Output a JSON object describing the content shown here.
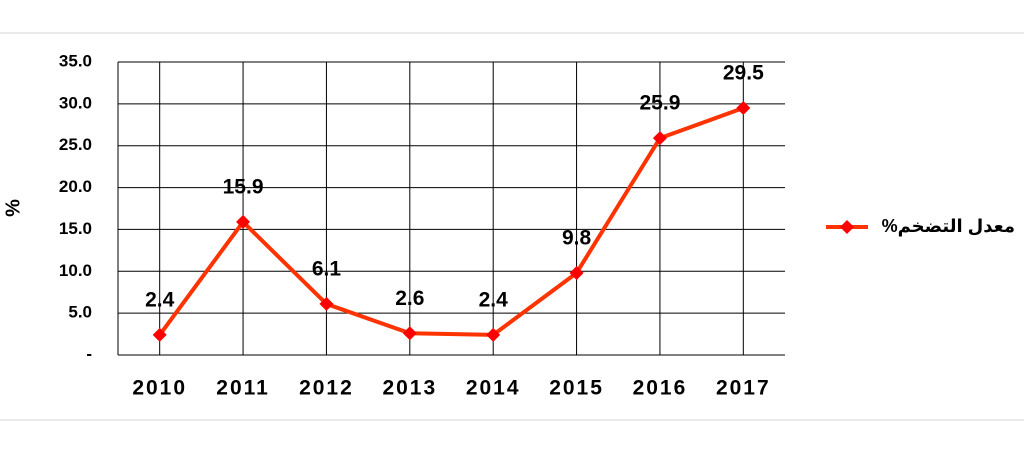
{
  "chart_data": {
    "type": "line",
    "y_label": "%",
    "categories": [
      "2010",
      "2011",
      "2012",
      "2013",
      "2014",
      "2015",
      "2016",
      "2017"
    ],
    "series": [
      {
        "name": "معدل التضخم%",
        "color": "#ff3300",
        "values": [
          2.4,
          15.9,
          6.1,
          2.6,
          2.4,
          9.8,
          25.9,
          29.5
        ]
      }
    ],
    "ylim": [
      0,
      35
    ],
    "yticks": [
      {
        "value": 0,
        "label": "-"
      },
      {
        "value": 5,
        "label": "5.0"
      },
      {
        "value": 10,
        "label": "10.0"
      },
      {
        "value": 15,
        "label": "15.0"
      },
      {
        "value": 20,
        "label": "20.0"
      },
      {
        "value": 25,
        "label": "25.0"
      },
      {
        "value": 30,
        "label": "30.0"
      },
      {
        "value": 35,
        "label": "35.0"
      }
    ],
    "grid": true,
    "legend": "right"
  }
}
